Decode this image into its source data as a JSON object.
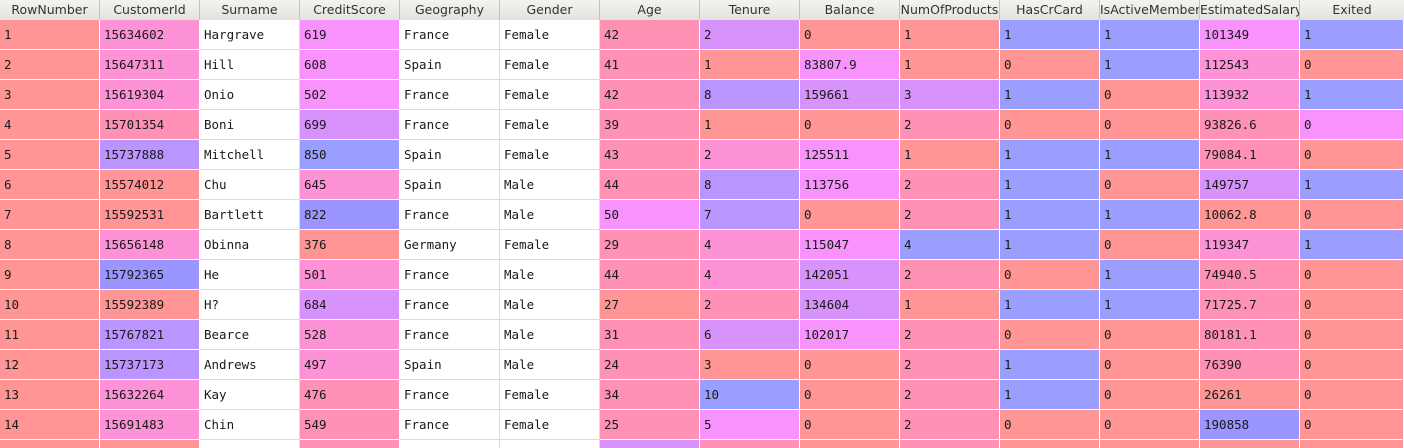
{
  "columns": [
    "RowNumber",
    "CustomerId",
    "Surname",
    "CreditScore",
    "Geography",
    "Gender",
    "Age",
    "Tenure",
    "Balance",
    "NumOfProducts",
    "HasCrCard",
    "IsActiveMember",
    "EstimatedSalary",
    "Exited"
  ],
  "rows": [
    [
      "1",
      "15634602",
      "Hargrave",
      "619",
      "France",
      "Female",
      "42",
      "2",
      "0",
      "1",
      "1",
      "1",
      "101349",
      "1"
    ],
    [
      "2",
      "15647311",
      "Hill",
      "608",
      "Spain",
      "Female",
      "41",
      "1",
      "83807.9",
      "1",
      "0",
      "1",
      "112543",
      "0"
    ],
    [
      "3",
      "15619304",
      "Onio",
      "502",
      "France",
      "Female",
      "42",
      "8",
      "159661",
      "3",
      "1",
      "0",
      "113932",
      "1"
    ],
    [
      "4",
      "15701354",
      "Boni",
      "699",
      "France",
      "Female",
      "39",
      "1",
      "0",
      "2",
      "0",
      "0",
      "93826.6",
      "0"
    ],
    [
      "5",
      "15737888",
      "Mitchell",
      "850",
      "Spain",
      "Female",
      "43",
      "2",
      "125511",
      "1",
      "1",
      "1",
      "79084.1",
      "0"
    ],
    [
      "6",
      "15574012",
      "Chu",
      "645",
      "Spain",
      "Male",
      "44",
      "8",
      "113756",
      "2",
      "1",
      "0",
      "149757",
      "1"
    ],
    [
      "7",
      "15592531",
      "Bartlett",
      "822",
      "France",
      "Male",
      "50",
      "7",
      "0",
      "2",
      "1",
      "1",
      "10062.8",
      "0"
    ],
    [
      "8",
      "15656148",
      "Obinna",
      "376",
      "Germany",
      "Female",
      "29",
      "4",
      "115047",
      "4",
      "1",
      "0",
      "119347",
      "1"
    ],
    [
      "9",
      "15792365",
      "He",
      "501",
      "France",
      "Male",
      "44",
      "4",
      "142051",
      "2",
      "0",
      "1",
      "74940.5",
      "0"
    ],
    [
      "10",
      "15592389",
      "H?",
      "684",
      "France",
      "Male",
      "27",
      "2",
      "134604",
      "1",
      "1",
      "1",
      "71725.7",
      "0"
    ],
    [
      "11",
      "15767821",
      "Bearce",
      "528",
      "France",
      "Male",
      "31",
      "6",
      "102017",
      "2",
      "0",
      "0",
      "80181.1",
      "0"
    ],
    [
      "12",
      "15737173",
      "Andrews",
      "497",
      "Spain",
      "Male",
      "24",
      "3",
      "0",
      "2",
      "1",
      "0",
      "76390",
      "0"
    ],
    [
      "13",
      "15632264",
      "Kay",
      "476",
      "France",
      "Female",
      "34",
      "10",
      "0",
      "2",
      "1",
      "0",
      "26261",
      "0"
    ],
    [
      "14",
      "15691483",
      "Chin",
      "549",
      "France",
      "Female",
      "25",
      "5",
      "0",
      "2",
      "0",
      "0",
      "190858",
      "0"
    ],
    [
      "",
      "",
      "",
      "",
      "",
      "",
      "",
      "",
      "",
      "",
      "",
      "",
      "",
      ""
    ]
  ],
  "colors": {
    "c0": "#ff9595",
    "c1": "#ff92b4",
    "c2": "#fe92d6",
    "c3": "#f892fd",
    "c4": "#d892fb",
    "c5": "#bb95ff",
    "c6": "#9b95ff",
    "c7": "#9a9eff",
    "plain": "#ffffff"
  },
  "cell_colors": [
    [
      "c0",
      "c2",
      "plain",
      "c3",
      "plain",
      "plain",
      "c1",
      "c4",
      "c0",
      "c0",
      "c7",
      "c7",
      "c3",
      "c7"
    ],
    [
      "c0",
      "c2",
      "plain",
      "c3",
      "plain",
      "plain",
      "c1",
      "c0",
      "c3",
      "c0",
      "c0",
      "c7",
      "c2",
      "c0"
    ],
    [
      "c0",
      "c2",
      "plain",
      "c3",
      "plain",
      "plain",
      "c1",
      "c5",
      "c4",
      "c4",
      "c7",
      "c0",
      "c2",
      "c7"
    ],
    [
      "c0",
      "c1",
      "plain",
      "c4",
      "plain",
      "plain",
      "c1",
      "c0",
      "c0",
      "c1",
      "c0",
      "c0",
      "c1",
      "c3"
    ],
    [
      "c0",
      "c5",
      "plain",
      "c7",
      "plain",
      "plain",
      "c1",
      "c2",
      "c3",
      "c0",
      "c7",
      "c7",
      "c1",
      "c0"
    ],
    [
      "c0",
      "c0",
      "plain",
      "c2",
      "plain",
      "plain",
      "c1",
      "c5",
      "c3",
      "c1",
      "c7",
      "c0",
      "c4",
      "c7"
    ],
    [
      "c0",
      "c0",
      "plain",
      "c6",
      "plain",
      "plain",
      "c3",
      "c5",
      "c0",
      "c1",
      "c7",
      "c7",
      "c0",
      "c0"
    ],
    [
      "c0",
      "c2",
      "plain",
      "c0",
      "plain",
      "plain",
      "c1",
      "c2",
      "c3",
      "c7",
      "c7",
      "c0",
      "c2",
      "c7"
    ],
    [
      "c0",
      "c6",
      "plain",
      "c2",
      "plain",
      "plain",
      "c1",
      "c2",
      "c4",
      "c1",
      "c0",
      "c7",
      "c1",
      "c0"
    ],
    [
      "c0",
      "c0",
      "plain",
      "c4",
      "plain",
      "plain",
      "c0",
      "c1",
      "c4",
      "c0",
      "c7",
      "c7",
      "c1",
      "c0"
    ],
    [
      "c0",
      "c5",
      "plain",
      "c2",
      "plain",
      "plain",
      "c1",
      "c4",
      "c3",
      "c1",
      "c0",
      "c0",
      "c1",
      "c0"
    ],
    [
      "c0",
      "c5",
      "plain",
      "c2",
      "plain",
      "plain",
      "c1",
      "c0",
      "c0",
      "c1",
      "c7",
      "c0",
      "c1",
      "c0"
    ],
    [
      "c0",
      "c2",
      "plain",
      "c1",
      "plain",
      "plain",
      "c1",
      "c7",
      "c0",
      "c1",
      "c7",
      "c0",
      "c0",
      "c0"
    ],
    [
      "c0",
      "c2",
      "plain",
      "c1",
      "plain",
      "plain",
      "c1",
      "c3",
      "c0",
      "c1",
      "c0",
      "c0",
      "c6",
      "c0"
    ],
    [
      "c0",
      "c0",
      "plain",
      "c1",
      "plain",
      "plain",
      "c4",
      "c1",
      "c0",
      "c1",
      "c0",
      "c0",
      "c0",
      "c0"
    ]
  ]
}
